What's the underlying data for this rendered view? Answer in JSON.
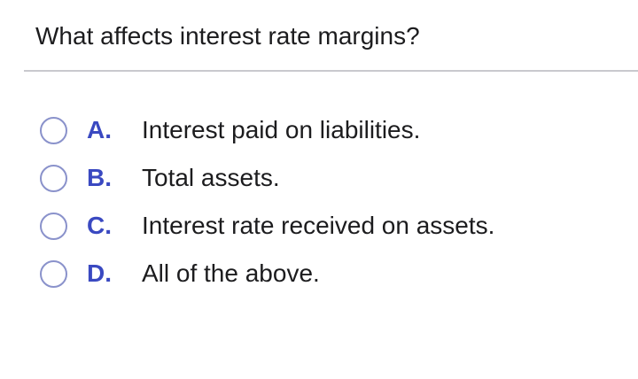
{
  "question": {
    "text": "What affects interest rate margins?"
  },
  "options": [
    {
      "letter": "A.",
      "label": "Interest paid on liabilities.",
      "selected": false
    },
    {
      "letter": "B.",
      "label": "Total assets.",
      "selected": false
    },
    {
      "letter": "C.",
      "label": "Interest rate received on assets.",
      "selected": false
    },
    {
      "letter": "D.",
      "label": "All of the above.",
      "selected": false
    }
  ],
  "colors": {
    "option_letter_blue": "#3a49c1",
    "radio_ring": "#8a92cb",
    "text": "#1c1c1e",
    "divider": "#c9c9ce",
    "background": "#ffffff"
  }
}
